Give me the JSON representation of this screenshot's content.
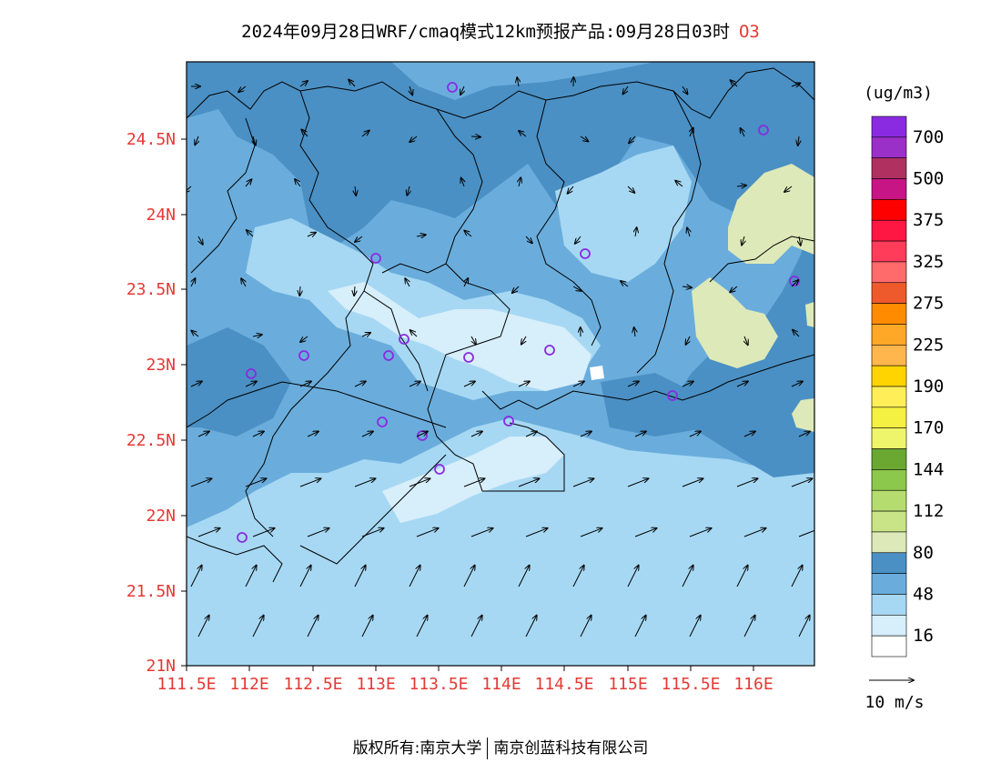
{
  "title": {
    "text": "2024年09月28日WRF/cmaq模式12km预报产品:09月28日03时",
    "species": "O3"
  },
  "units": "(ug/m3)",
  "wind_reference": "10 m/s",
  "footer": {
    "left": "版权所有:南京大学",
    "right": "南京创蓝科技有限公司"
  },
  "axes": {
    "lat_ticks": [
      "24.5N",
      "24N",
      "23.5N",
      "23N",
      "22.5N",
      "22N",
      "21.5N",
      "21N"
    ],
    "lon_ticks": [
      "111.5E",
      "112E",
      "112.5E",
      "113E",
      "113.5E",
      "114E",
      "114.5E",
      "115E",
      "115.5E",
      "116E"
    ]
  },
  "legend": {
    "labels": [
      "700",
      "500",
      "375",
      "325",
      "275",
      "225",
      "190",
      "170",
      "144",
      "112",
      "80",
      "48",
      "16"
    ],
    "colors": [
      "#8a2be2",
      "#9b30c8",
      "#b03060",
      "#c71585",
      "#ff0000",
      "#ff1744",
      "#ff3c5a",
      "#ff6a6a",
      "#ef5a2d",
      "#ff8c00",
      "#ffa726",
      "#ffb74d",
      "#ffd400",
      "#ffee58",
      "#f4f142",
      "#eef56a",
      "#6aa832",
      "#8cc84b",
      "#b5dc6e",
      "#c9e486",
      "#dde9b8",
      "#4a90c4",
      "#6aaddc",
      "#a6d8f3",
      "#d7eefb",
      "#ffffff"
    ]
  },
  "field_colors": {
    "ocean": "#a6d8f3",
    "mid": "#6aaddc",
    "high": "#4a90c4",
    "low": "#d7eefb",
    "very_low": "#ffffff",
    "yellow_green": "#dde9b8",
    "boundary": "#000000",
    "station": "#8a2be2"
  }
}
